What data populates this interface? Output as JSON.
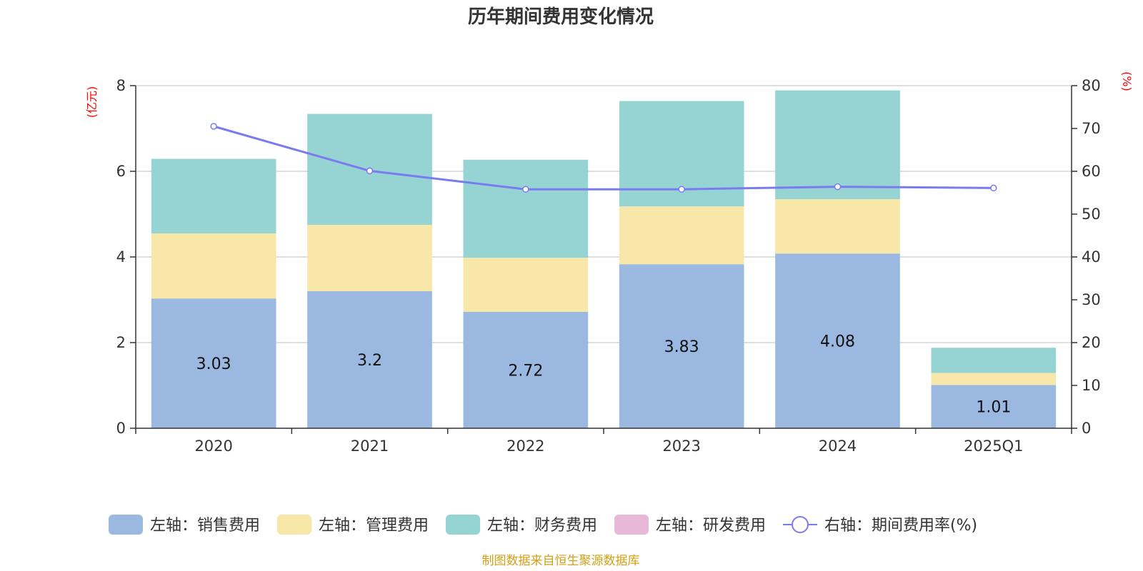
{
  "chart_data": {
    "type": "bar",
    "title": "历年期间费用变化情况",
    "left_axis_unit": "(亿元)",
    "right_axis_unit": "(%)",
    "categories": [
      "2020",
      "2021",
      "2022",
      "2023",
      "2024",
      "2025Q1"
    ],
    "ylim_left": [
      0,
      8
    ],
    "yticks_left": [
      "0",
      "2",
      "4",
      "6",
      "8"
    ],
    "ylim_right": [
      0,
      80
    ],
    "yticks_right": [
      "0",
      "10",
      "20",
      "30",
      "40",
      "50",
      "60",
      "70",
      "80"
    ],
    "grid": true,
    "legend_position": "bottom",
    "series": [
      {
        "name": "左轴：销售费用",
        "axis": "left",
        "type": "bar",
        "color": "#9bb8e1",
        "values": [
          3.03,
          3.2,
          2.72,
          3.83,
          4.08,
          1.01
        ],
        "labels": [
          "3.03",
          "3.2",
          "2.72",
          "3.83",
          "4.08",
          "1.01"
        ]
      },
      {
        "name": "左轴：管理费用",
        "axis": "left",
        "type": "bar",
        "color": "#f7e7a8",
        "values": [
          1.52,
          1.55,
          1.26,
          1.35,
          1.27,
          0.28
        ]
      },
      {
        "name": "左轴：财务费用",
        "axis": "left",
        "type": "bar",
        "color": "#96d4d4",
        "values": [
          1.74,
          2.59,
          2.29,
          2.46,
          2.54,
          0.59
        ]
      },
      {
        "name": "左轴：研发费用",
        "axis": "left",
        "type": "bar",
        "color": "#e8b8d8",
        "values": [
          0,
          0,
          0,
          0,
          0,
          0
        ]
      },
      {
        "name": "右轴：期间费用率(%)",
        "axis": "right",
        "type": "line",
        "color": "#7b7bf0",
        "values": [
          70.5,
          60.1,
          55.8,
          55.8,
          56.4,
          56.1
        ]
      }
    ],
    "source": "制图数据来自恒生聚源数据库"
  }
}
